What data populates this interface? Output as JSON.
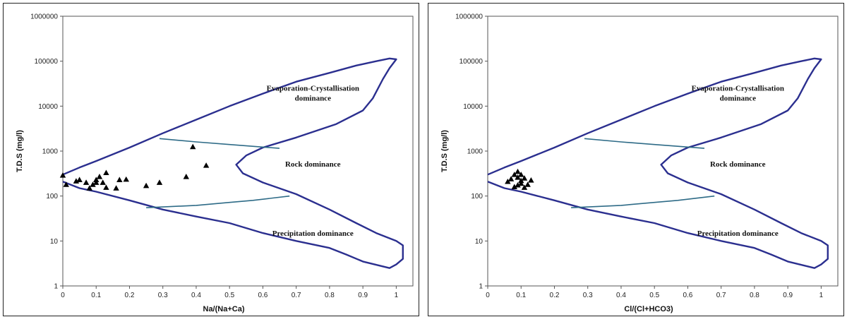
{
  "chart_data": [
    {
      "type": "scatter",
      "xlabel": "Na/(Na+Ca)",
      "ylabel": "T.D.S (mg/l)",
      "xlim": [
        0,
        1.05
      ],
      "ylim": [
        1,
        1000000
      ],
      "y_scale": "log",
      "x_ticks": [
        "0",
        "0.1",
        "0.2",
        "0.3",
        "0.4",
        "0.5",
        "0.6",
        "0.7",
        "0.8",
        "0.9",
        "1"
      ],
      "y_ticks": [
        "1",
        "10",
        "100",
        "1000",
        "10000",
        "100000",
        "1000000"
      ],
      "annotations": [
        {
          "lines": [
            "Evaporation-Crystallisation",
            "dominance"
          ],
          "x": 0.75,
          "y": 22000
        },
        {
          "lines": [
            "Rock dominance"
          ],
          "x": 0.75,
          "y": 450
        },
        {
          "lines": [
            "Precipitation dominance"
          ],
          "x": 0.75,
          "y": 13
        }
      ],
      "points": [
        {
          "x": 0.0,
          "y": 290
        },
        {
          "x": 0.01,
          "y": 180
        },
        {
          "x": 0.04,
          "y": 215
        },
        {
          "x": 0.05,
          "y": 230
        },
        {
          "x": 0.07,
          "y": 200
        },
        {
          "x": 0.08,
          "y": 150
        },
        {
          "x": 0.09,
          "y": 180
        },
        {
          "x": 0.1,
          "y": 230
        },
        {
          "x": 0.1,
          "y": 200
        },
        {
          "x": 0.11,
          "y": 270
        },
        {
          "x": 0.12,
          "y": 200
        },
        {
          "x": 0.13,
          "y": 155
        },
        {
          "x": 0.13,
          "y": 330
        },
        {
          "x": 0.16,
          "y": 150
        },
        {
          "x": 0.17,
          "y": 230
        },
        {
          "x": 0.19,
          "y": 235
        },
        {
          "x": 0.25,
          "y": 170
        },
        {
          "x": 0.29,
          "y": 200
        },
        {
          "x": 0.37,
          "y": 270
        },
        {
          "x": 0.39,
          "y": 1250
        },
        {
          "x": 0.43,
          "y": 480
        }
      ]
    },
    {
      "type": "scatter",
      "xlabel": "Cl/(Cl+HCO3)",
      "ylabel": "T.D.S (mg/l)",
      "xlim": [
        0,
        1.05
      ],
      "ylim": [
        1,
        1000000
      ],
      "y_scale": "log",
      "x_ticks": [
        "0",
        "0.1",
        "0.2",
        "0.3",
        "0.4",
        "0.5",
        "0.6",
        "0.7",
        "0.8",
        "0.9",
        "1"
      ],
      "y_ticks": [
        "1",
        "10",
        "100",
        "1000",
        "10000",
        "100000",
        "1000000"
      ],
      "annotations": [
        {
          "lines": [
            "Evaporation-Crystallisation",
            "dominance"
          ],
          "x": 0.75,
          "y": 22000
        },
        {
          "lines": [
            "Rock dominance"
          ],
          "x": 0.75,
          "y": 450
        },
        {
          "lines": [
            "Precipitation dominance"
          ],
          "x": 0.75,
          "y": 13
        }
      ],
      "points": [
        {
          "x": 0.06,
          "y": 210
        },
        {
          "x": 0.07,
          "y": 240
        },
        {
          "x": 0.08,
          "y": 300
        },
        {
          "x": 0.09,
          "y": 350
        },
        {
          "x": 0.09,
          "y": 260
        },
        {
          "x": 0.09,
          "y": 175
        },
        {
          "x": 0.1,
          "y": 220
        },
        {
          "x": 0.1,
          "y": 190
        },
        {
          "x": 0.11,
          "y": 250
        },
        {
          "x": 0.11,
          "y": 155
        },
        {
          "x": 0.12,
          "y": 180
        },
        {
          "x": 0.1,
          "y": 300
        },
        {
          "x": 0.13,
          "y": 225
        },
        {
          "x": 0.08,
          "y": 160
        }
      ]
    }
  ],
  "colors": {
    "envelope": "#2b2f8f",
    "divider": "#2e6b87",
    "points": "#000000",
    "axis": "#555555"
  }
}
